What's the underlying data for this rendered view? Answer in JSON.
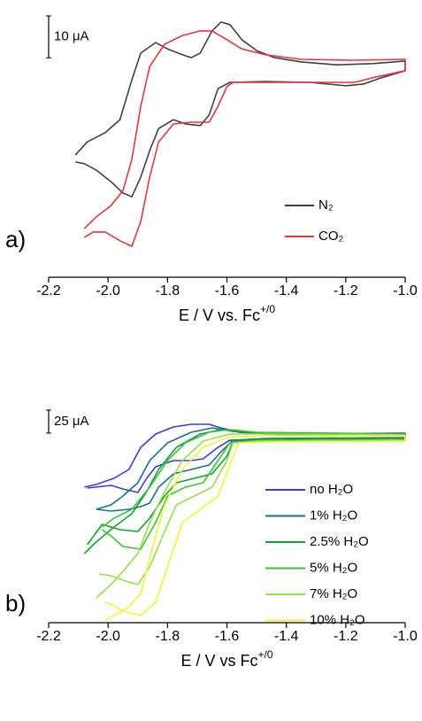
{
  "chart_data": [
    {
      "type": "line",
      "panel_label": "a)",
      "scale_bar": {
        "value": 10,
        "label": "10 μA"
      },
      "xlabel": "E / V vs. Fc",
      "xlabel_superscript": "+/0",
      "xlim": [
        -2.2,
        -1.0
      ],
      "ylim": [
        -45,
        18
      ],
      "xticks": [
        -2.2,
        {
          "value": -2.0,
          "label": "-2.0"
        },
        -1.8,
        -1.6,
        -1.4,
        -1.2,
        {
          "value": -1.0,
          "label": "-1.0"
        }
      ],
      "legend": "lower right",
      "series": [
        {
          "name": "N₂",
          "color": "#404040",
          "x": [
            -2.11,
            -2.07,
            -2.01,
            -1.96,
            -1.92,
            -1.89,
            -1.84,
            -1.8,
            -1.75,
            -1.72,
            -1.69,
            -1.65,
            -1.62,
            -1.59,
            -1.55,
            -1.5,
            -1.44,
            -1.35,
            -1.23,
            -1.11,
            -1.0,
            -1.0,
            -1.08,
            -1.14,
            -1.2,
            -1.32,
            -1.47,
            -1.59,
            -1.63,
            -1.66,
            -1.69,
            -1.74,
            -1.78,
            -1.83,
            -1.86,
            -1.89,
            -1.92,
            -1.95,
            -1.99,
            -2.04,
            -2.08,
            -2.11
          ],
          "values": [
            -15.8,
            -12.7,
            -10.5,
            -7.4,
            2.1,
            8.5,
            11.0,
            9.5,
            8.1,
            7.4,
            8.5,
            13.8,
            15.9,
            15.3,
            11.7,
            9.1,
            7.4,
            6.4,
            5.7,
            6.0,
            6.6,
            4.3,
            2.6,
            1.1,
            0.7,
            1.5,
            1.7,
            1.5,
            0.0,
            -6.3,
            -8.8,
            -8.4,
            -7.4,
            -9.5,
            -14.8,
            -21.1,
            -25.8,
            -24.9,
            -22.2,
            -19.4,
            -17.9,
            -17.5
          ]
        },
        {
          "name": "CO₂",
          "color": "#e03a3a",
          "x": [
            -2.08,
            -2.04,
            -1.99,
            -1.95,
            -1.92,
            -1.89,
            -1.86,
            -1.81,
            -1.75,
            -1.69,
            -1.65,
            -1.6,
            -1.55,
            -1.47,
            -1.35,
            -1.17,
            -1.0,
            -1.0,
            -1.11,
            -1.17,
            -1.32,
            -1.47,
            -1.58,
            -1.6,
            -1.63,
            -1.66,
            -1.72,
            -1.78,
            -1.83,
            -1.86,
            -1.89,
            -1.92,
            -1.96,
            -2.01,
            -2.05,
            -2.08
          ],
          "values": [
            -33.4,
            -30.6,
            -27.9,
            -24.3,
            -16.9,
            -4.2,
            5.3,
            10.6,
            12.7,
            13.8,
            13.8,
            11.7,
            9.5,
            8.1,
            7.0,
            6.8,
            7.0,
            4.3,
            2.6,
            1.5,
            1.5,
            1.5,
            1.5,
            0.5,
            -4.2,
            -8.0,
            -8.0,
            -8.4,
            -12.7,
            -21.1,
            -31.7,
            -37.6,
            -36.3,
            -34.2,
            -34.2,
            -35.5
          ]
        }
      ]
    },
    {
      "type": "line",
      "panel_label": "b)",
      "scale_bar": {
        "value": 25,
        "label": "25 μA"
      },
      "xlabel": "E / V vs Fc",
      "xlabel_superscript": "+/0",
      "xlim": [
        -2.2,
        -1.0
      ],
      "ylim": [
        -180,
        54
      ],
      "xticks": [
        -2.2,
        {
          "value": -2.0,
          "label": "-2.0"
        },
        -1.8,
        -1.6,
        -1.4,
        -1.2,
        {
          "value": -1.0,
          "label": "-1.0"
        }
      ],
      "legend": "lower right",
      "series": [
        {
          "name": "no H₂O",
          "color": "#3a3ae0",
          "x": [
            -2.08,
            -2.04,
            -1.98,
            -1.93,
            -1.89,
            -1.84,
            -1.78,
            -1.72,
            -1.66,
            -1.62,
            -1.56,
            -1.47,
            -1.0,
            -1.0,
            -1.47,
            -1.59,
            -1.63,
            -1.68,
            -1.72,
            -1.78,
            -1.84,
            -1.87,
            -1.9,
            -1.95,
            -1.99,
            -2.07
          ],
          "values": [
            -32.7,
            -29.8,
            -23.0,
            -13.4,
            10.7,
            25.1,
            32.8,
            35.7,
            35.7,
            31.8,
            27.0,
            25.1,
            26.1,
            20.3,
            19.3,
            18.4,
            10.7,
            -1.9,
            -3.8,
            -3.8,
            -10.5,
            -23.0,
            -38.4,
            -34.6,
            -30.7,
            -33.6
          ]
        },
        {
          "name": "1% H₂O",
          "color": "#1f6e8c",
          "x": [
            -2.04,
            -1.99,
            -1.95,
            -1.9,
            -1.86,
            -1.8,
            -1.72,
            -1.65,
            -1.58,
            -1.47,
            -1.0,
            -1.0,
            -1.47,
            -1.58,
            -1.62,
            -1.66,
            -1.72,
            -1.78,
            -1.83,
            -1.86,
            -1.89,
            -1.93,
            -1.99,
            -2.04
          ],
          "values": [
            -56.7,
            -51.9,
            -42.3,
            -27.9,
            -3.8,
            15.5,
            27.0,
            31.8,
            28.0,
            25.1,
            25.1,
            21.3,
            20.3,
            18.4,
            5.8,
            -8.6,
            -13.4,
            -18.2,
            -32.7,
            -50.0,
            -53.9,
            -56.7,
            -58.7,
            -56.7
          ]
        },
        {
          "name": "2.5% H₂O",
          "color": "#15a032",
          "x": [
            -2.08,
            -2.04,
            -1.98,
            -1.92,
            -1.87,
            -1.83,
            -1.77,
            -1.69,
            -1.62,
            -1.53,
            -1.41,
            -1.0,
            -1.0,
            -1.47,
            -1.58,
            -1.6,
            -1.65,
            -1.71,
            -1.77,
            -1.81,
            -1.86,
            -1.9,
            -1.96,
            -2.02,
            -2.07
          ],
          "values": [
            -104.9,
            -92.4,
            -76.0,
            -61.6,
            -37.5,
            -13.4,
            10.7,
            25.1,
            29.9,
            27.0,
            24.1,
            25.1,
            20.3,
            19.3,
            17.4,
            1.0,
            -18.2,
            -23.0,
            -27.9,
            -42.3,
            -66.4,
            -80.8,
            -78.9,
            -73.1,
            -95.3
          ]
        },
        {
          "name": "5% H₂O",
          "color": "#3cc43c",
          "x": [
            -2.02,
            -1.98,
            -1.92,
            -1.86,
            -1.8,
            -1.74,
            -1.66,
            -1.59,
            -1.5,
            -1.0,
            -1.0,
            -1.5,
            -1.59,
            -1.63,
            -1.68,
            -1.74,
            -1.8,
            -1.84,
            -1.89,
            -1.95,
            -1.99,
            -2.02
          ],
          "values": [
            -76.0,
            -66.4,
            -56.7,
            -32.7,
            -3.8,
            15.5,
            27.0,
            29.9,
            27.0,
            25.1,
            19.3,
            18.4,
            15.5,
            -3.8,
            -27.9,
            -32.7,
            -42.3,
            -71.2,
            -100.1,
            -97.2,
            -85.6,
            -78.9
          ]
        },
        {
          "name": "7% H₂O",
          "color": "#95e04a",
          "x": [
            -2.04,
            -1.99,
            -1.95,
            -1.9,
            -1.86,
            -1.81,
            -1.75,
            -1.68,
            -1.59,
            -1.47,
            -1.0,
            -1.0,
            -1.47,
            -1.58,
            -1.6,
            -1.65,
            -1.71,
            -1.77,
            -1.81,
            -1.86,
            -1.9,
            -1.95,
            -1.99,
            -2.03
          ],
          "values": [
            -153.0,
            -138.6,
            -124.1,
            -104.9,
            -71.2,
            -37.5,
            -3.8,
            17.4,
            25.1,
            25.1,
            24.1,
            18.4,
            17.4,
            15.5,
            -3.8,
            -32.7,
            -42.3,
            -51.9,
            -80.8,
            -119.3,
            -138.6,
            -133.8,
            -129.0,
            -127.0
          ]
        },
        {
          "name": "10% H₂O",
          "color": "#f2f23c",
          "x": [
            -2.01,
            -1.98,
            -1.93,
            -1.89,
            -1.86,
            -1.81,
            -1.75,
            -1.68,
            -1.59,
            -1.47,
            -1.0,
            -1.0,
            -1.47,
            -1.56,
            -1.59,
            -1.63,
            -1.69,
            -1.75,
            -1.8,
            -1.84,
            -1.89,
            -1.95,
            -1.99,
            -2.01
          ],
          "values": [
            -177.1,
            -172.3,
            -162.7,
            -148.2,
            -109.7,
            -51.9,
            -13.4,
            10.7,
            22.2,
            23.2,
            23.2,
            17.4,
            16.4,
            15.5,
            -8.6,
            -42.3,
            -56.7,
            -71.2,
            -119.3,
            -157.9,
            -172.3,
            -167.5,
            -159.8,
            -157.9
          ]
        }
      ]
    }
  ]
}
